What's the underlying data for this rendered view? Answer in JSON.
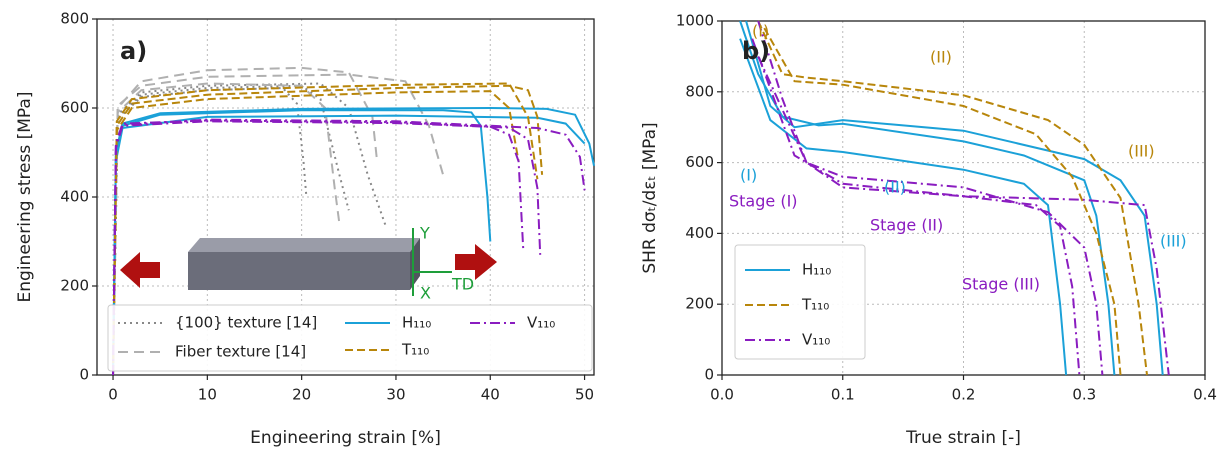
{
  "chart_data": [
    {
      "type": "line",
      "ylabel": "Engineering stress [MPa]",
      "xlabel": "Engineering strain [%]",
      "xlim": [
        -1.7,
        51
      ],
      "ylim": [
        0,
        800
      ],
      "xticks": [
        0,
        10,
        20,
        30,
        40,
        50
      ],
      "yticks": [
        0,
        200,
        400,
        600,
        800
      ],
      "grid": true,
      "annotations": [
        "a)",
        "Y",
        "X",
        "TD"
      ],
      "series": [
        {
          "name": "{100} texture [14]",
          "color": "#888888",
          "dash": "2 4",
          "curves": [
            {
              "x": [
                0,
                0.5,
                3,
                10,
                20,
                22,
                24,
                25
              ],
              "values": [
                0,
                580,
                630,
                645,
                650,
                620,
                450,
                370
              ]
            },
            {
              "x": [
                0,
                0.5,
                3,
                10,
                18,
                19.5,
                20.2,
                20.5
              ],
              "values": [
                0,
                575,
                625,
                640,
                645,
                610,
                480,
                400
              ]
            },
            {
              "x": [
                0,
                0.5,
                3,
                10,
                22,
                25,
                27,
                29
              ],
              "values": [
                0,
                585,
                635,
                650,
                655,
                600,
                450,
                330
              ]
            }
          ]
        },
        {
          "name": "Fiber texture [14]",
          "color": "#b0b0b0",
          "dash": "10 6",
          "curves": [
            {
              "x": [
                0,
                0.5,
                3,
                10,
                20,
                25,
                27.5,
                28
              ],
              "values": [
                0,
                600,
                660,
                685,
                690,
                680,
                580,
                480
              ]
            },
            {
              "x": [
                0,
                0.5,
                3,
                10,
                20,
                22.5,
                23.5,
                24
              ],
              "values": [
                0,
                590,
                640,
                655,
                650,
                600,
                420,
                340
              ]
            },
            {
              "x": [
                0,
                0.5,
                3,
                10,
                25,
                31,
                33.5,
                35
              ],
              "values": [
                0,
                605,
                650,
                670,
                675,
                660,
                560,
                450
              ]
            }
          ]
        },
        {
          "name": "H₁₁₀",
          "color": "#1ba1d8",
          "dash": "",
          "curves": [
            {
              "x": [
                0,
                0.3,
                1,
                5,
                20,
                35,
                38,
                39,
                39.7,
                40
              ],
              "values": [
                0,
                500,
                560,
                585,
                595,
                595,
                590,
                560,
                400,
                300
              ]
            },
            {
              "x": [
                0,
                0.3,
                1,
                5,
                20,
                40,
                46,
                49,
                50.5,
                51
              ],
              "values": [
                0,
                500,
                565,
                588,
                598,
                600,
                598,
                585,
                520,
                470
              ]
            },
            {
              "x": [
                0,
                0.3,
                1,
                10,
                30,
                45,
                48,
                50
              ],
              "values": [
                0,
                480,
                555,
                580,
                583,
                578,
                565,
                520
              ]
            }
          ]
        },
        {
          "name": "T₁₁₀",
          "color": "#b8860b",
          "dash": "8 4",
          "curves": [
            {
              "x": [
                0,
                0.4,
                2,
                10,
                30,
                42,
                44,
                45,
                45.5
              ],
              "values": [
                0,
                560,
                610,
                630,
                645,
                650,
                640,
                580,
                450
              ]
            },
            {
              "x": [
                0,
                0.4,
                2,
                10,
                30,
                40,
                42,
                43
              ],
              "values": [
                0,
                550,
                600,
                620,
                635,
                638,
                600,
                480
              ]
            },
            {
              "x": [
                0,
                0.4,
                2,
                10,
                30,
                42,
                44,
                45
              ],
              "values": [
                0,
                570,
                620,
                640,
                652,
                655,
                580,
                440
              ]
            }
          ]
        },
        {
          "name": "V₁₁₀",
          "color": "#8a1cc0",
          "dash": "10 4 2 4",
          "curves": [
            {
              "x": [
                0,
                0.3,
                1,
                10,
                30,
                40,
                42,
                43,
                43.5
              ],
              "values": [
                0,
                520,
                565,
                572,
                568,
                558,
                540,
                480,
                280
              ]
            },
            {
              "x": [
                0,
                0.3,
                1,
                10,
                30,
                42,
                44,
                45,
                45.3
              ],
              "values": [
                0,
                510,
                560,
                570,
                566,
                556,
                530,
                420,
                270
              ]
            },
            {
              "x": [
                0,
                0.3,
                1,
                10,
                30,
                45,
                48,
                49.5,
                50
              ],
              "values": [
                0,
                515,
                562,
                574,
                570,
                555,
                540,
                490,
                415
              ]
            }
          ]
        }
      ]
    },
    {
      "type": "line",
      "ylabel": "SHR dσₜ/dεₜ [MPa]",
      "xlabel": "True strain [-]",
      "xlim": [
        0,
        0.4
      ],
      "ylim": [
        0,
        1000
      ],
      "xticks": [
        {
          "value": 0,
          "label": "0.0"
        },
        0.1,
        0.2,
        0.3,
        0.4
      ],
      "yticks": [
        0,
        200,
        400,
        600,
        800,
        1000
      ],
      "grid": true,
      "annotations": [
        "b)",
        "(I)",
        "(II)",
        "(III)",
        "(I)",
        "(II)",
        "(III)",
        "Stage (I)",
        "Stage (II)",
        "Stage (III)"
      ],
      "series": [
        {
          "name": "H₁₁₀",
          "color": "#1ba1d8",
          "dash": "",
          "curves": [
            {
              "x": [
                0.015,
                0.03,
                0.05,
                0.08,
                0.1,
                0.2,
                0.25,
                0.3,
                0.31,
                0.32,
                0.325
              ],
              "values": [
                1000,
                850,
                730,
                705,
                710,
                660,
                620,
                550,
                450,
                200,
                0
              ]
            },
            {
              "x": [
                0.02,
                0.04,
                0.06,
                0.1,
                0.2,
                0.3,
                0.33,
                0.35,
                0.36,
                0.365
              ],
              "values": [
                1000,
                760,
                700,
                720,
                690,
                610,
                550,
                450,
                200,
                0
              ]
            },
            {
              "x": [
                0.015,
                0.04,
                0.07,
                0.1,
                0.2,
                0.25,
                0.27,
                0.28,
                0.285
              ],
              "values": [
                950,
                720,
                640,
                630,
                580,
                540,
                480,
                200,
                0
              ]
            }
          ]
        },
        {
          "name": "T₁₁₀",
          "color": "#b8860b",
          "dash": "8 4",
          "curves": [
            {
              "x": [
                0.03,
                0.05,
                0.07,
                0.1,
                0.2,
                0.27,
                0.3,
                0.33,
                0.345,
                0.352
              ],
              "values": [
                1000,
                850,
                840,
                830,
                790,
                720,
                650,
                500,
                200,
                0
              ]
            },
            {
              "x": [
                0.035,
                0.06,
                0.1,
                0.2,
                0.26,
                0.29,
                0.31,
                0.325,
                0.33
              ],
              "values": [
                980,
                830,
                820,
                760,
                680,
                560,
                400,
                200,
                0
              ]
            }
          ]
        },
        {
          "name": "V₁₁₀",
          "color": "#8a1cc0",
          "dash": "10 4 2 4",
          "curves": [
            {
              "x": [
                0.03,
                0.05,
                0.07,
                0.1,
                0.2,
                0.3,
                0.35,
                0.36,
                0.37
              ],
              "values": [
                1000,
                780,
                600,
                530,
                505,
                495,
                480,
                300,
                0
              ]
            },
            {
              "x": [
                0.025,
                0.06,
                0.1,
                0.2,
                0.26,
                0.28,
                0.29,
                0.296
              ],
              "values": [
                950,
                620,
                540,
                505,
                480,
                420,
                250,
                0
              ]
            },
            {
              "x": [
                0.03,
                0.07,
                0.1,
                0.2,
                0.27,
                0.3,
                0.31,
                0.315
              ],
              "values": [
                900,
                600,
                560,
                530,
                460,
                360,
                200,
                0
              ]
            }
          ]
        }
      ]
    }
  ]
}
